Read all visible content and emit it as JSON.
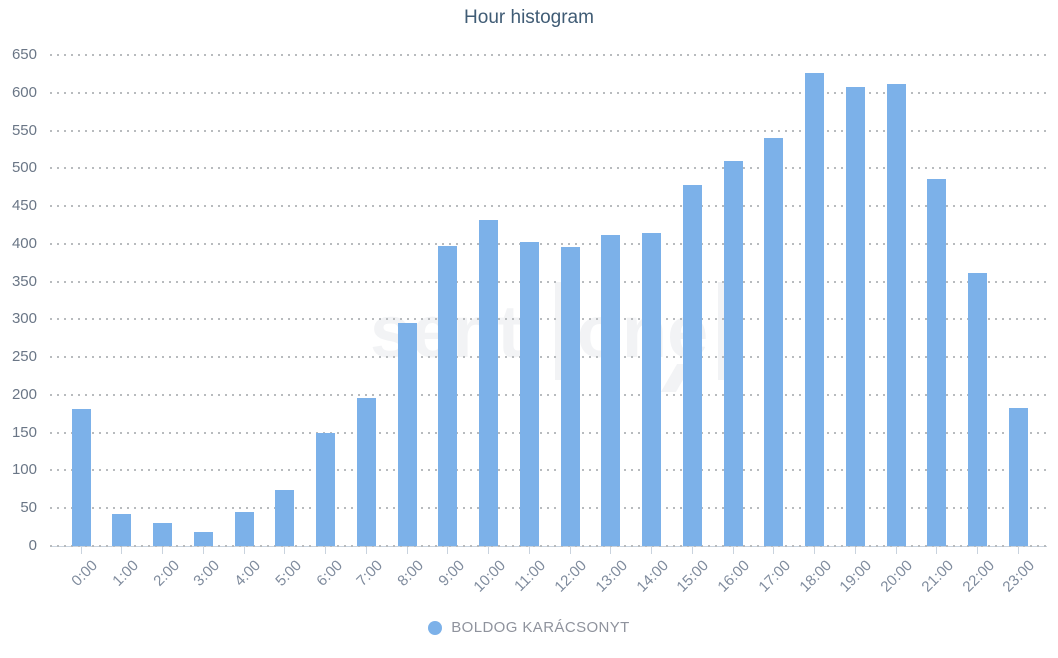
{
  "title": "Hour histogram",
  "legend": {
    "label": "BOLDOG KARÁCSONYT"
  },
  "watermark": {
    "prefix": "senti",
    "bubble": "one"
  },
  "colors": {
    "background": "#ffffff",
    "title": "#405c75",
    "bar": "#7cb1e9",
    "grid": "#b8bbbe",
    "ylabel": "#6a7686",
    "xlabel": "#7f8b9d",
    "axis": "#c9d3de",
    "legend": "#8f939d",
    "watermark": "#f2f3f5"
  },
  "chart_data": {
    "type": "bar",
    "title": "Hour histogram",
    "categories": [
      "0:00",
      "1:00",
      "2:00",
      "3:00",
      "4:00",
      "5:00",
      "6:00",
      "7:00",
      "8:00",
      "9:00",
      "10:00",
      "11:00",
      "12:00",
      "13:00",
      "14:00",
      "15:00",
      "16:00",
      "17:00",
      "18:00",
      "19:00",
      "20:00",
      "21:00",
      "22:00",
      "23:00"
    ],
    "series": [
      {
        "name": "BOLDOG KARÁCSONYT",
        "values": [
          182,
          42,
          30,
          18,
          45,
          74,
          150,
          196,
          295,
          397,
          431,
          402,
          396,
          412,
          415,
          478,
          510,
          540,
          626,
          608,
          611,
          486,
          362,
          183
        ]
      }
    ],
    "xlabel": "",
    "ylabel": "",
    "ylim": [
      0,
      650
    ],
    "yticks": [
      0,
      50,
      100,
      150,
      200,
      250,
      300,
      350,
      400,
      450,
      500,
      550,
      600,
      650
    ],
    "grid": "horizontal-dotted",
    "x_label_rotation": -45,
    "legend_position": "bottom-center"
  }
}
